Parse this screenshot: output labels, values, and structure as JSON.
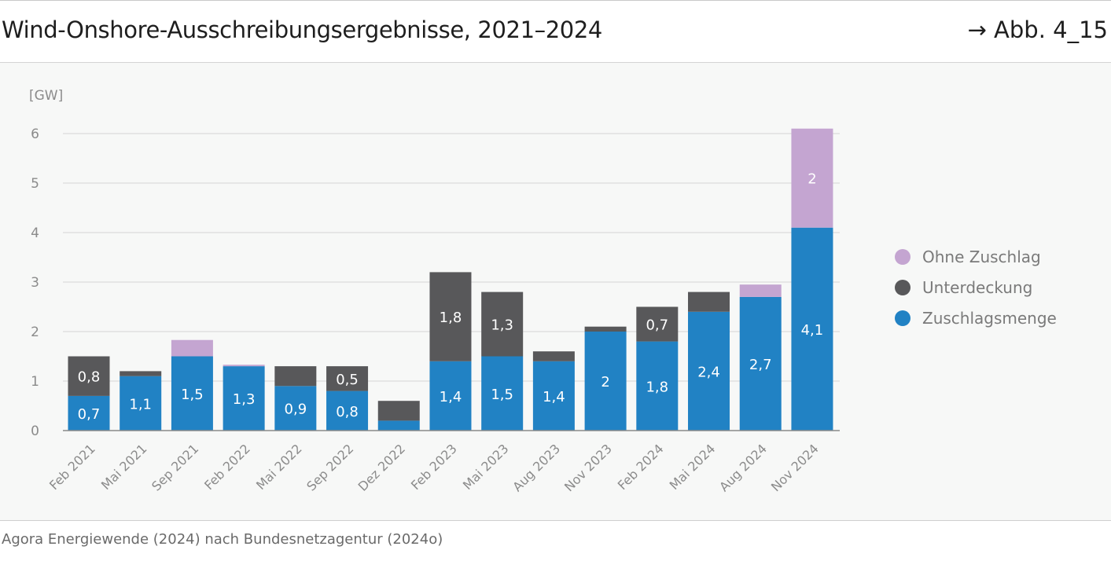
{
  "header": {
    "title": "Wind-Onshore-Ausschreibungsergebnisse, 2021–2024",
    "ref": "→ Abb. 4_15"
  },
  "source": "Agora Energiewende (2024) nach Bundesnetzagentur (2024o)",
  "chart_data": {
    "type": "bar",
    "stacked": true,
    "unit_label": "[GW]",
    "ylim": [
      0,
      6
    ],
    "yticks": [
      0,
      1,
      2,
      3,
      4,
      5,
      6
    ],
    "grid": true,
    "legend_position": "right",
    "categories": [
      "Feb 2021",
      "Mai 2021",
      "Sep 2021",
      "Feb 2022",
      "Mai 2022",
      "Sep 2022",
      "Dez 2022",
      "Feb 2023",
      "Mai 2023",
      "Aug 2023",
      "Nov 2023",
      "Feb 2024",
      "Mai 2024",
      "Aug 2024",
      "Nov 2024"
    ],
    "series": [
      {
        "name": "Zuschlagsmenge",
        "color": "#2182c4",
        "values": [
          0.7,
          1.1,
          1.5,
          1.3,
          0.9,
          0.8,
          0.2,
          1.4,
          1.5,
          1.4,
          2.0,
          1.8,
          2.4,
          2.7,
          4.1
        ],
        "labels": [
          "0,7",
          "1,1",
          "1,5",
          "1,3",
          "0,9",
          "0,8",
          "",
          "1,4",
          "1,5",
          "1,4",
          "2",
          "1,8",
          "2,4",
          "2,7",
          "4,1"
        ]
      },
      {
        "name": "Unterdeckung",
        "color": "#58585a",
        "values": [
          0.8,
          0.1,
          0,
          0,
          0.4,
          0.5,
          0.4,
          1.8,
          1.3,
          0.2,
          0.1,
          0.7,
          0.4,
          0,
          0
        ],
        "labels": [
          "0,8",
          "",
          "",
          "",
          "",
          "0,5",
          "",
          "1,8",
          "1,3",
          "",
          "",
          "0,7",
          "",
          "",
          ""
        ]
      },
      {
        "name": "Ohne Zuschlag",
        "color": "#c4a5d1",
        "values": [
          0,
          0,
          0.33,
          0.03,
          0,
          0,
          0,
          0,
          0,
          0,
          0,
          0,
          0,
          0.25,
          2.0
        ],
        "labels": [
          "",
          "",
          "",
          "",
          "",
          "",
          "",
          "",
          "",
          "",
          "",
          "",
          "",
          "",
          "2"
        ]
      }
    ],
    "legend_order": [
      "Ohne Zuschlag",
      "Unterdeckung",
      "Zuschlagsmenge"
    ]
  }
}
